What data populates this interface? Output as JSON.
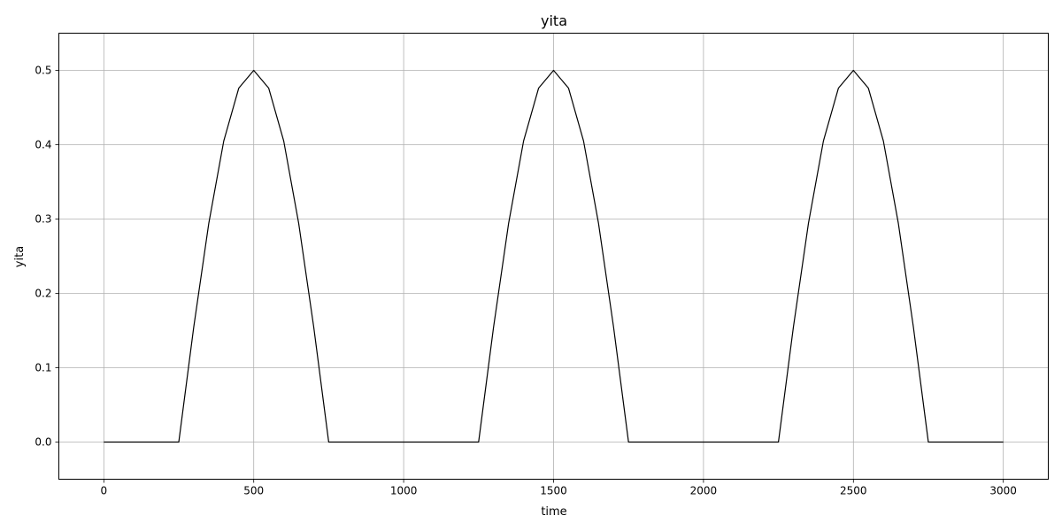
{
  "chart_data": {
    "type": "line",
    "title": "yita",
    "xlabel": "time",
    "ylabel": "yita",
    "xlim": [
      -150,
      3150
    ],
    "ylim": [
      -0.05,
      0.55
    ],
    "xticks": [
      0,
      500,
      1000,
      1500,
      2000,
      2500,
      3000
    ],
    "xtick_labels": [
      "0",
      "500",
      "1000",
      "1500",
      "2000",
      "2500",
      "3000"
    ],
    "yticks": [
      0.0,
      0.1,
      0.2,
      0.3,
      0.4,
      0.5
    ],
    "ytick_labels": [
      "0.0",
      "0.1",
      "0.2",
      "0.3",
      "0.4",
      "0.5"
    ],
    "grid": true,
    "legend": false,
    "line_color": "#000000",
    "grid_color": "#b0b0b0",
    "series": [
      {
        "x": [
          0,
          250,
          300,
          350,
          400,
          450,
          500,
          550,
          600,
          650,
          700,
          750,
          1250,
          1300,
          1350,
          1400,
          1450,
          1500,
          1550,
          1600,
          1650,
          1700,
          1750,
          2250,
          2300,
          2350,
          2400,
          2450,
          2500,
          2550,
          2600,
          2650,
          2700,
          2750,
          3000
        ],
        "y": [
          0,
          0,
          0.155,
          0.294,
          0.405,
          0.476,
          0.5,
          0.476,
          0.405,
          0.294,
          0.155,
          0,
          0,
          0.155,
          0.294,
          0.405,
          0.476,
          0.5,
          0.476,
          0.405,
          0.294,
          0.155,
          0,
          0,
          0.155,
          0.294,
          0.405,
          0.476,
          0.5,
          0.476,
          0.405,
          0.294,
          0.155,
          0,
          0
        ]
      }
    ]
  }
}
